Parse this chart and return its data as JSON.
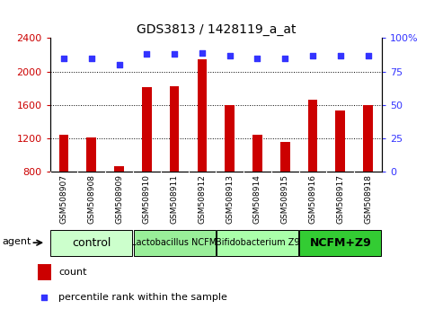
{
  "title": "GDS3813 / 1428119_a_at",
  "samples": [
    "GSM508907",
    "GSM508908",
    "GSM508909",
    "GSM508910",
    "GSM508911",
    "GSM508912",
    "GSM508913",
    "GSM508914",
    "GSM508915",
    "GSM508916",
    "GSM508917",
    "GSM508918"
  ],
  "counts": [
    1240,
    1210,
    870,
    1810,
    1820,
    2150,
    1600,
    1240,
    1160,
    1660,
    1530,
    1600
  ],
  "percentiles": [
    85,
    85,
    80,
    88,
    88,
    89,
    87,
    85,
    85,
    87,
    87,
    87
  ],
  "ylim_left": [
    800,
    2400
  ],
  "ylim_right": [
    0,
    100
  ],
  "yticks_left": [
    800,
    1200,
    1600,
    2000,
    2400
  ],
  "yticks_right": [
    0,
    25,
    50,
    75,
    100
  ],
  "hgrid_lines": [
    1200,
    1600,
    2000
  ],
  "bar_color": "#cc0000",
  "dot_color": "#3333ff",
  "bar_width": 0.35,
  "groups": [
    {
      "label": "control",
      "start": 0,
      "end": 3,
      "color": "#ccffcc",
      "fontsize": 9,
      "bold": false
    },
    {
      "label": "Lactobacillus NCFM",
      "start": 3,
      "end": 6,
      "color": "#99ee99",
      "fontsize": 7,
      "bold": false
    },
    {
      "label": "Bifidobacterium Z9",
      "start": 6,
      "end": 9,
      "color": "#aaffaa",
      "fontsize": 7,
      "bold": false
    },
    {
      "label": "NCFM+Z9",
      "start": 9,
      "end": 12,
      "color": "#33cc33",
      "fontsize": 9,
      "bold": true
    }
  ],
  "tick_color_left": "#cc0000",
  "tick_color_right": "#3333ff",
  "xlabel_bg": "#d0d0d0",
  "plot_bg": "#ffffff",
  "agent_label": "agent",
  "legend_count_color": "#cc0000",
  "legend_dot_color": "#3333ff"
}
